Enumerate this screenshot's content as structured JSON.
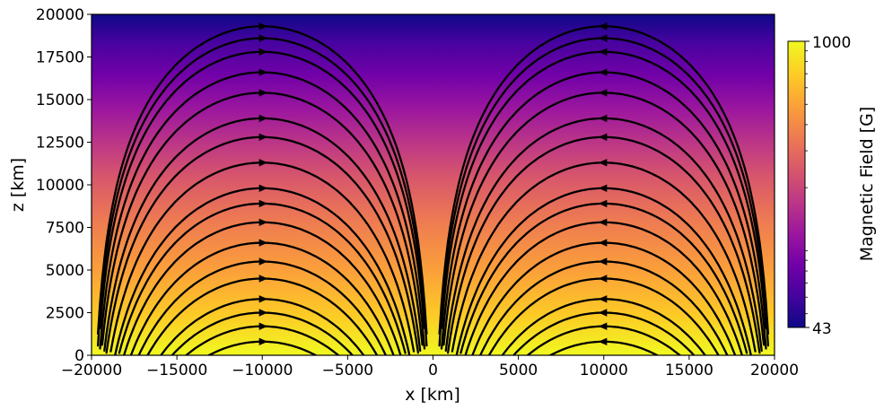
{
  "chart_data": {
    "type": "streamplot",
    "xlabel": "x [km]",
    "ylabel": "z [km]",
    "xlim": [
      -20000,
      20000
    ],
    "ylim": [
      0,
      20000
    ],
    "xticks": [
      "−20000",
      "−15000",
      "−10000",
      "−5000",
      "0",
      "5000",
      "10000",
      "15000",
      "20000"
    ],
    "xtick_values": [
      -20000,
      -15000,
      -10000,
      -5000,
      0,
      5000,
      10000,
      15000,
      20000
    ],
    "yticks": [
      "0",
      "2500",
      "5000",
      "7500",
      "10000",
      "12500",
      "15000",
      "17500",
      "20000"
    ],
    "ytick_values": [
      0,
      2500,
      5000,
      7500,
      10000,
      12500,
      15000,
      17500,
      20000
    ],
    "colorbar": {
      "label": "Magnetic Field [G]",
      "min_label": "43",
      "max_label": "1000",
      "min": 43,
      "max": 1000,
      "scale": "log",
      "colormap": "plasma"
    },
    "field_model": {
      "description_free": true,
      "source_sign_x": [
        -10000,
        10000
      ],
      "left_loop_direction": "clockwise-right-at-top",
      "right_loop_direction": "counterclockwise-left-at-top"
    },
    "loops": {
      "left_center_x": -10000,
      "right_center_x": 10000,
      "apex_z": [
        800,
        1700,
        2500,
        3300,
        4500,
        5500,
        6600,
        7800,
        8900,
        9800,
        11300,
        12800,
        13900,
        15400,
        16600,
        17800,
        18600,
        19300
      ]
    },
    "colors": {
      "line": "#000000",
      "cmap": [
        "#0d0887",
        "#46039f",
        "#7201a8",
        "#9c179e",
        "#bd3786",
        "#d8576b",
        "#ed7953",
        "#fb9f3a",
        "#fdca26",
        "#f0f921"
      ]
    }
  }
}
